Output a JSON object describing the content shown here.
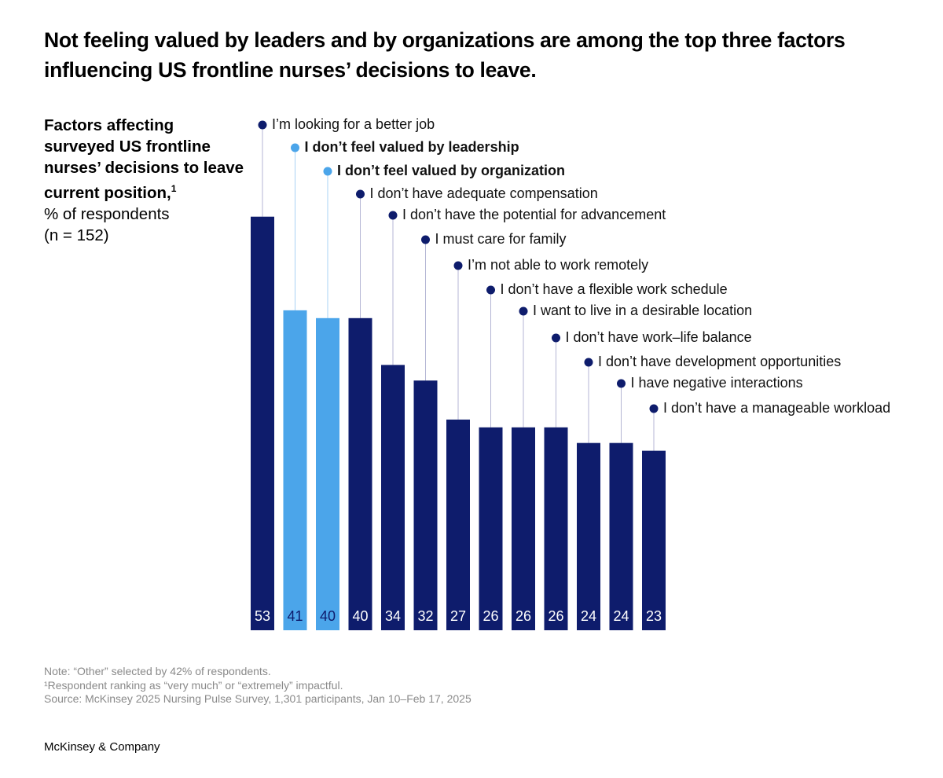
{
  "chart_data": {
    "type": "bar",
    "title": "Not feeling valued by leaders and by organizations are among the top three factors influencing US frontline nurses’ decisions to leave.",
    "subtitle": "Factors affecting surveyed US frontline nurses’ decisions to leave current position,",
    "subtitle_footnote": "1",
    "unit": "% of respondents",
    "sample": "(n = 152)",
    "categories": [
      "I’m looking for a better job",
      "I don’t feel valued by leadership",
      "I don’t feel valued by organization",
      "I don’t have adequate compensation",
      "I don’t have the potential for advancement",
      "I must care for family",
      "I’m not able to work remotely",
      "I don’t have a flexible work schedule",
      "I want to live in a desirable location",
      "I don’t have work–life balance",
      "I don’t have development opportunities",
      "I have negative interactions",
      "I don’t have a manageable workload"
    ],
    "values": [
      53,
      41,
      40,
      40,
      34,
      32,
      27,
      26,
      26,
      26,
      24,
      24,
      23
    ],
    "colors": [
      "#0e1c6c",
      "#4ba5ea",
      "#4ba5ea",
      "#0e1c6c",
      "#0e1c6c",
      "#0e1c6c",
      "#0e1c6c",
      "#0e1c6c",
      "#0e1c6c",
      "#0e1c6c",
      "#0e1c6c",
      "#0e1c6c",
      "#0e1c6c"
    ],
    "highlight_color": "#4ba5ea",
    "notes": [
      "Note: “Other” selected by 42% of respondents.",
      "¹Respondent ranking as “very much” or “extremely” impactful.",
      "Source: McKinsey 2025 Nursing Pulse Survey, 1,301 participants, Jan 10–Feb 17, 2025"
    ],
    "footer": "McKinsey & Company"
  }
}
